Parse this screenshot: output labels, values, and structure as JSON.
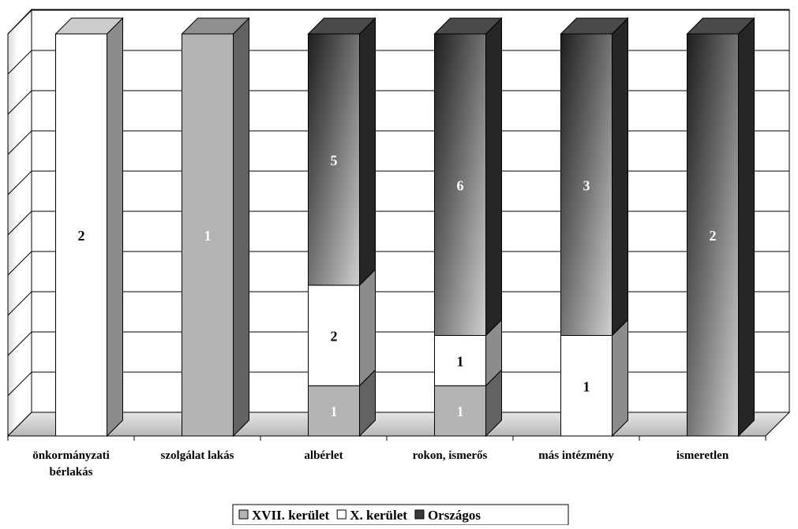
{
  "chart_data": {
    "type": "bar",
    "stacked": true,
    "three_d": true,
    "categories": [
      [
        "önkormányzati",
        "bérlakás"
      ],
      [
        "szolgálat lakás"
      ],
      [
        "albérlet"
      ],
      [
        "rokon, ismerős"
      ],
      [
        "más intézmény"
      ],
      [
        "ismeretlen"
      ]
    ],
    "series": [
      {
        "name": "XVII. kerület",
        "values": [
          0,
          1,
          1,
          1,
          0,
          0
        ]
      },
      {
        "name": "X. kerület",
        "values": [
          2,
          0,
          2,
          1,
          1,
          0
        ]
      },
      {
        "name": "Országos",
        "values": [
          0,
          0,
          5,
          6,
          3,
          2
        ]
      }
    ],
    "percent_stacked": true,
    "data_labels": true,
    "grid": true,
    "legend_position": "bottom",
    "colors": {
      "XVII. kerület": "#b3b3b3",
      "X. kerület": "#ffffff",
      "Országos": "#3a3a3a"
    }
  }
}
